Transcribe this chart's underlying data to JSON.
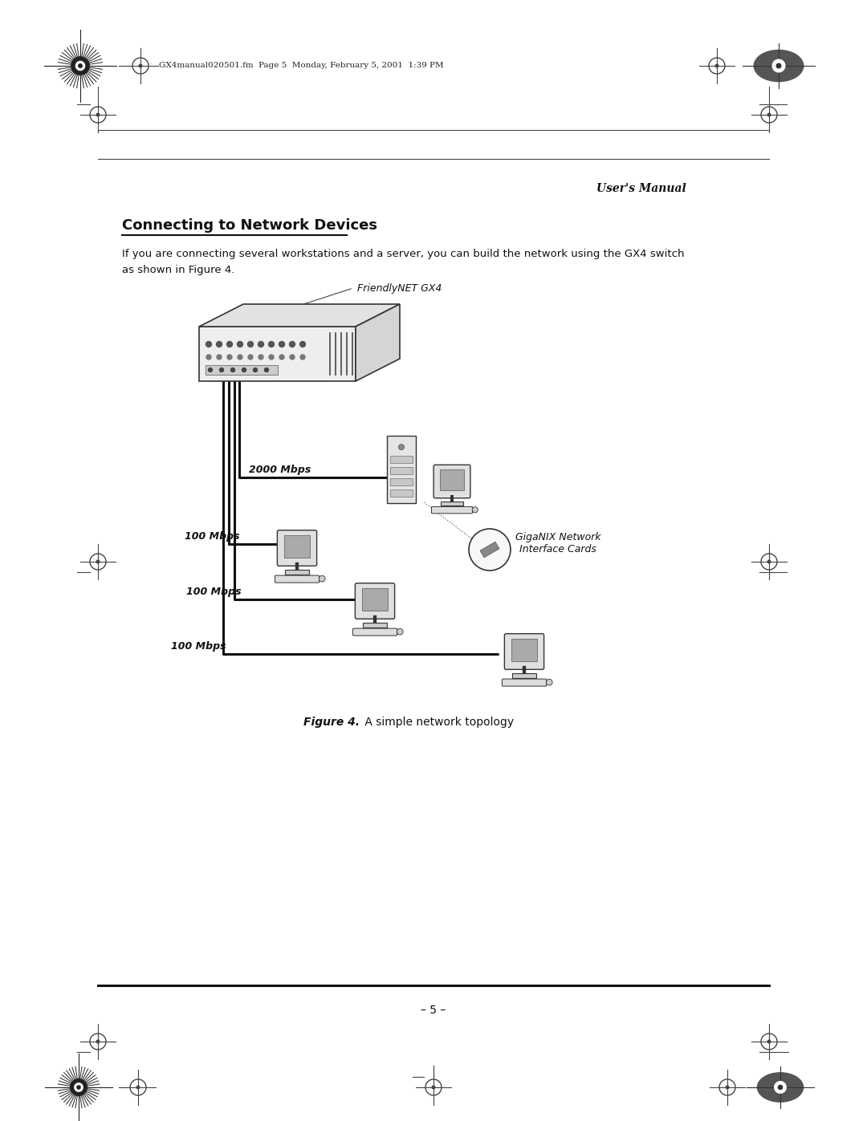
{
  "bg_color": "#ffffff",
  "page_width": 10.8,
  "page_height": 13.97,
  "header_text": "GX4manual020501.fm  Page 5  Monday, February 5, 2001  1:39 PM",
  "header_right": "User's Manual",
  "section_title": "Connecting to Network Devices",
  "body_text": "If you are connecting several workstations and a server, you can build the network using the GX4 switch\nas shown in Figure 4.",
  "figure_caption_bold": "Figure 4.",
  "figure_caption_normal": " A simple network topology",
  "page_number": "– 5 –",
  "switch_label": "FriendlyNET GX4",
  "nic_label": "GigaNIX Network\nInterface Cards",
  "speed_labels": [
    "2000 Mbps",
    "100 Mbps",
    "100 Mbps",
    "100 Mbps"
  ]
}
